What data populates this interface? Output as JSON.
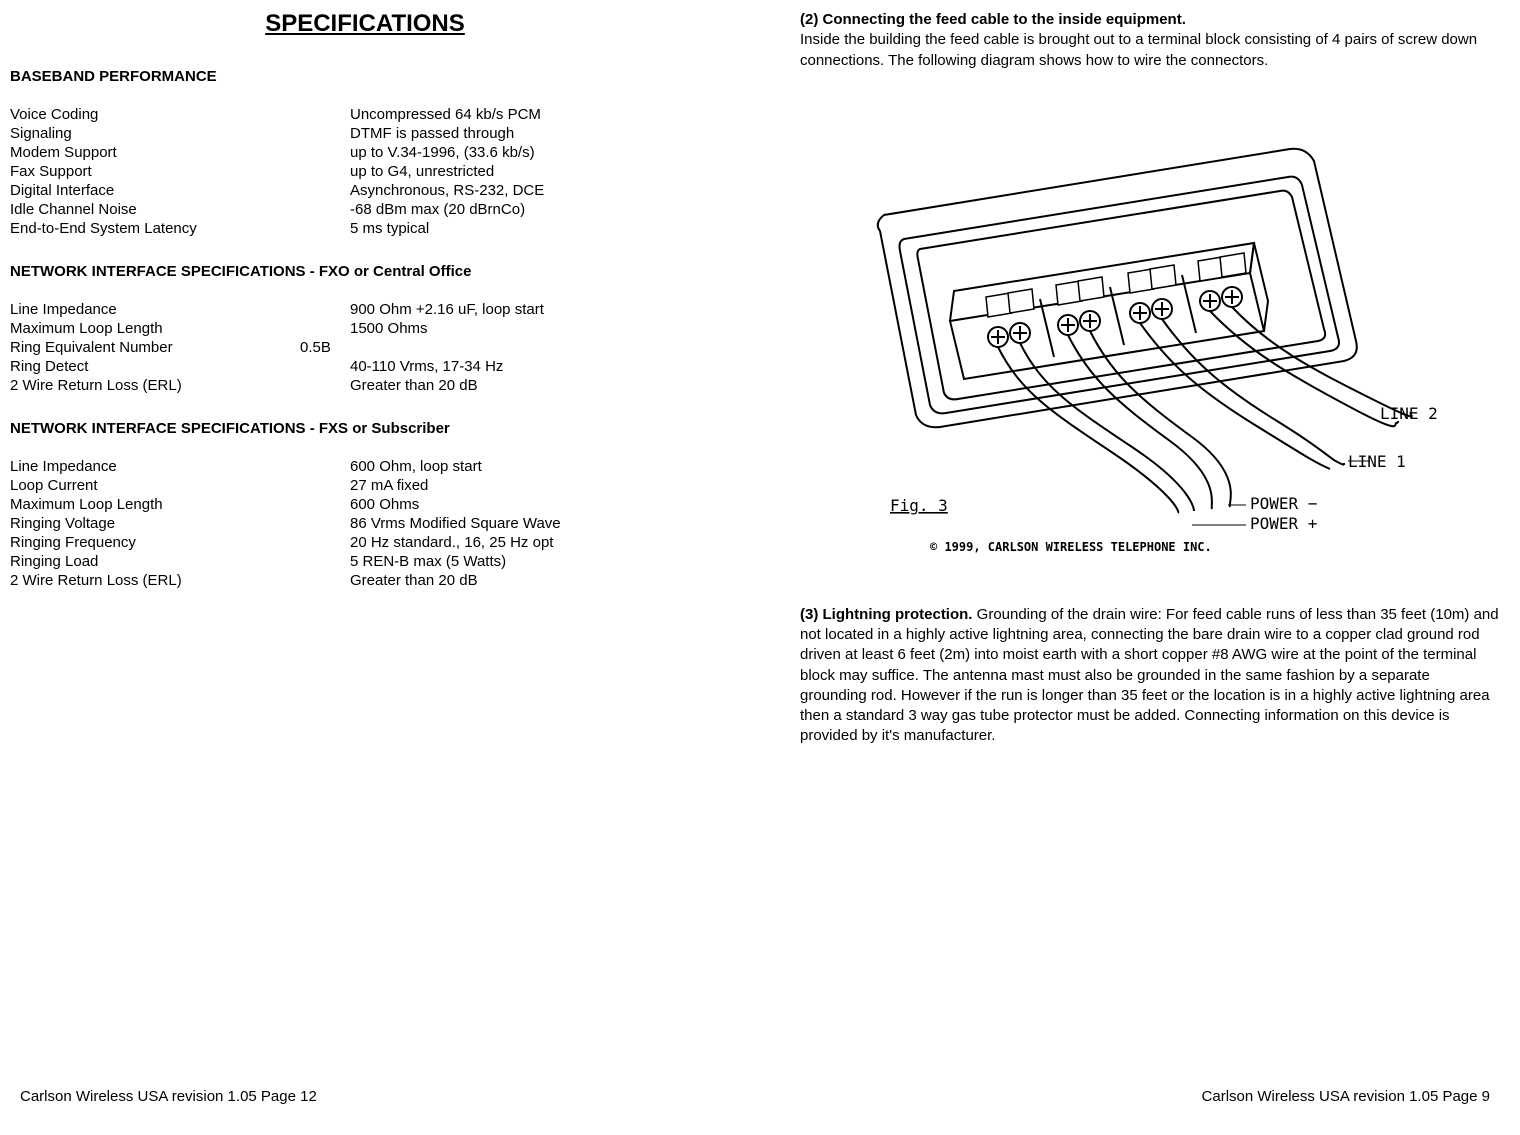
{
  "left": {
    "title": "SPECIFICATIONS",
    "section1": {
      "header": "BASEBAND PERFORMANCE",
      "rows": [
        {
          "label": "Voice Coding",
          "mid": "",
          "value": "Uncompressed 64 kb/s PCM"
        },
        {
          "label": "Signaling",
          "mid": "",
          "value": "DTMF is passed through"
        },
        {
          "label": "Modem Support",
          "mid": "",
          "value": "up to V.34-1996, (33.6 kb/s)"
        },
        {
          "label": "Fax Support",
          "mid": "",
          "value": "up to G4, unrestricted"
        },
        {
          "label": "Digital Interface",
          "mid": "",
          "value": "Asynchronous, RS-232, DCE"
        },
        {
          "label": "Idle Channel Noise",
          "mid": "",
          "value": "-68 dBm max (20 dBrnCo)"
        },
        {
          "label": "End-to-End System Latency",
          "mid": "",
          "value": "5 ms typical"
        }
      ]
    },
    "section2": {
      "header": "NETWORK INTERFACE SPECIFICATIONS - FXO or Central Office",
      "rows": [
        {
          "label": "Line Impedance",
          "mid": "",
          "value": "900 Ohm +2.16 uF, loop start"
        },
        {
          "label": "Maximum Loop Length",
          "mid": "",
          "value": "1500 Ohms"
        },
        {
          "label": "Ring Equivalent Number",
          "mid": "0.5B",
          "value": ""
        },
        {
          "label": "Ring Detect",
          "mid": "",
          "value": "40-110 Vrms, 17-34 Hz"
        },
        {
          "label": "2 Wire Return Loss (ERL)",
          "mid": "",
          "value": "Greater than 20 dB"
        }
      ]
    },
    "section3": {
      "header": "NETWORK INTERFACE SPECIFICATIONS - FXS or Subscriber",
      "rows": [
        {
          "label": "Line Impedance",
          "mid": "",
          "value": "600 Ohm, loop start"
        },
        {
          "label": "Loop Current",
          "mid": "",
          "value": "27 mA fixed"
        },
        {
          "label": "Maximum Loop Length",
          "mid": "",
          "value": "600 Ohms"
        },
        {
          "label": "Ringing Voltage",
          "mid": "",
          "value": "86 Vrms Modified Square Wave"
        },
        {
          "label": "Ringing Frequency",
          "mid": "",
          "value": "20 Hz standard., 16, 25 Hz opt"
        },
        {
          "label": "Ringing Load",
          "mid": "",
          "value": "5 REN-B max (5 Watts)"
        },
        {
          "label": "2 Wire Return Loss (ERL)",
          "mid": "",
          "value": "Greater than 20 dB"
        }
      ]
    },
    "footer": "Carlson Wireless USA revision 1.05 Page 12"
  },
  "right": {
    "step2_bold": "(2) Connecting the feed cable to the inside equipment.",
    "step2_text": "Inside the building the feed cable is brought out to a terminal block consisting of 4 pairs of screw down connections.  The following diagram shows how to wire the connectors.",
    "diagram": {
      "fig_label": "Fig. 3",
      "copyright": "© 1999, CARLSON WIRELESS TELEPHONE INC.",
      "labels": {
        "line2": "LINE 2",
        "line1": "LINE 1",
        "power_minus": "POWER −",
        "power_plus": "POWER +"
      },
      "stroke": "#000000",
      "fill": "#ffffff"
    },
    "step3_bold": "(3) Lightning protection.",
    "step3_text": "  Grounding of the drain wire: For feed cable runs of less than 35 feet (10m) and not located in a highly active lightning area, connecting the bare drain wire to a copper clad ground rod driven at least 6 feet (2m) into moist earth with a short copper #8 AWG wire at the point of the terminal block may suffice. The antenna mast must also be grounded in the same fashion by a separate grounding rod. However if the run is longer than 35 feet or the location is in a highly active lightning area then a standard 3 way gas tube protector must be added. Connecting information on this device is provided by it's manufacturer.",
    "footer": "Carlson Wireless USA revision 1.05 Page 9"
  }
}
